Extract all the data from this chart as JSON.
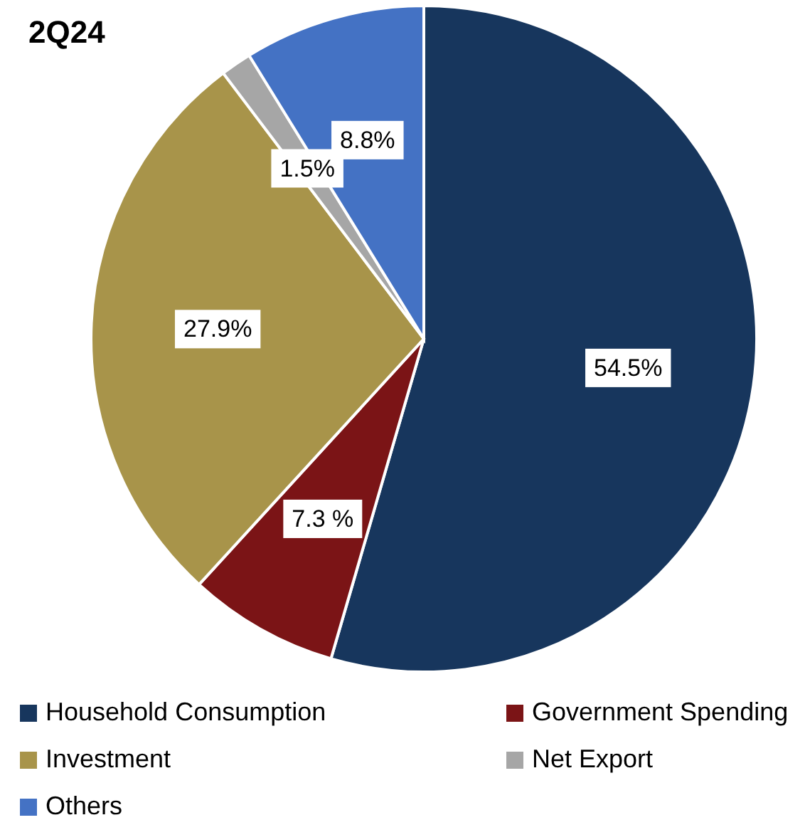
{
  "chart_data": {
    "type": "pie",
    "title": "2Q24",
    "categories": [
      "Household Consumption",
      "Government Spending",
      "Investment",
      "Net Export",
      "Others"
    ],
    "values": [
      54.5,
      7.3,
      27.9,
      1.5,
      8.8
    ],
    "value_labels": [
      "54.5%",
      "7.3 %",
      "27.9%",
      "1.5%",
      "8.8%"
    ],
    "colors": [
      "#17365d",
      "#7b1416",
      "#a8944a",
      "#a6a6a6",
      "#4472c4"
    ],
    "legend": "bottom"
  }
}
